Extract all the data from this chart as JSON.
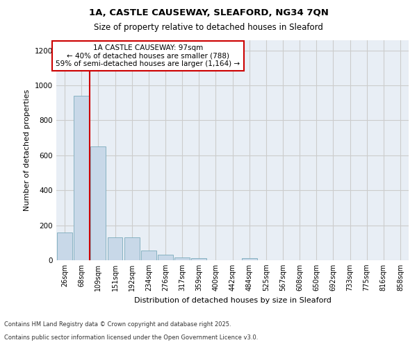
{
  "title1": "1A, CASTLE CAUSEWAY, SLEAFORD, NG34 7QN",
  "title2": "Size of property relative to detached houses in Sleaford",
  "xlabel": "Distribution of detached houses by size in Sleaford",
  "ylabel": "Number of detached properties",
  "bin_labels": [
    "26sqm",
    "68sqm",
    "109sqm",
    "151sqm",
    "192sqm",
    "234sqm",
    "276sqm",
    "317sqm",
    "359sqm",
    "400sqm",
    "442sqm",
    "484sqm",
    "525sqm",
    "567sqm",
    "608sqm",
    "650sqm",
    "692sqm",
    "733sqm",
    "775sqm",
    "816sqm",
    "858sqm"
  ],
  "bar_values": [
    160,
    940,
    650,
    130,
    130,
    55,
    30,
    15,
    10,
    0,
    0,
    10,
    0,
    0,
    0,
    0,
    0,
    0,
    0,
    0,
    0
  ],
  "bar_color": "#c8d8e8",
  "bar_edge_color": "#7aaabb",
  "annotation_text": "1A CASTLE CAUSEWAY: 97sqm\n← 40% of detached houses are smaller (788)\n59% of semi-detached houses are larger (1,164) →",
  "annotation_box_color": "#ffffff",
  "annotation_box_edge_color": "#cc0000",
  "property_line_color": "#cc0000",
  "ylim": [
    0,
    1260
  ],
  "yticks": [
    0,
    200,
    400,
    600,
    800,
    1000,
    1200
  ],
  "grid_color": "#cccccc",
  "bg_color": "#e8eef5",
  "footnote1": "Contains HM Land Registry data © Crown copyright and database right 2025.",
  "footnote2": "Contains public sector information licensed under the Open Government Licence v3.0."
}
